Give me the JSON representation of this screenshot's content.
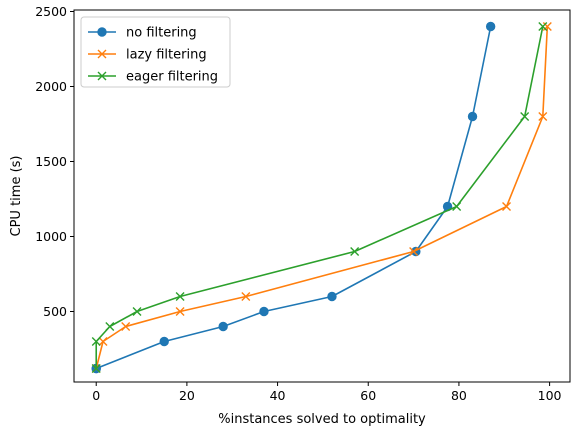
{
  "chart_data": {
    "type": "line",
    "xlabel": "%instances solved to optimality",
    "ylabel": "CPU time (s)",
    "xlim": [
      -4.9,
      104.5
    ],
    "ylim": [
      30,
      2510
    ],
    "xticks": [
      0,
      20,
      40,
      60,
      80,
      100
    ],
    "yticks": [
      500,
      1000,
      1500,
      2000,
      2500
    ],
    "grid": false,
    "legend_position": "top-left",
    "series": [
      {
        "name": "no filtering",
        "color": "#1f77b4",
        "marker": "circle",
        "x": [
          0,
          0,
          15,
          28,
          37,
          52,
          70.5,
          77.5,
          83,
          87
        ],
        "y": [
          120,
          120,
          300,
          400,
          500,
          600,
          900,
          1200,
          1800,
          2400
        ]
      },
      {
        "name": "lazy filtering",
        "color": "#ff7f0e",
        "marker": "x",
        "x": [
          0,
          1.5,
          6.5,
          18.5,
          33,
          70,
          90.5,
          98.5,
          99.5
        ],
        "y": [
          120,
          300,
          400,
          500,
          600,
          900,
          1200,
          1800,
          2400
        ]
      },
      {
        "name": "eager filtering",
        "color": "#2ca02c",
        "marker": "x",
        "x": [
          0,
          0,
          3,
          9,
          18.5,
          57,
          79.5,
          94.5,
          98.5
        ],
        "y": [
          120,
          300,
          400,
          500,
          600,
          900,
          1200,
          1800,
          2400
        ]
      }
    ]
  }
}
